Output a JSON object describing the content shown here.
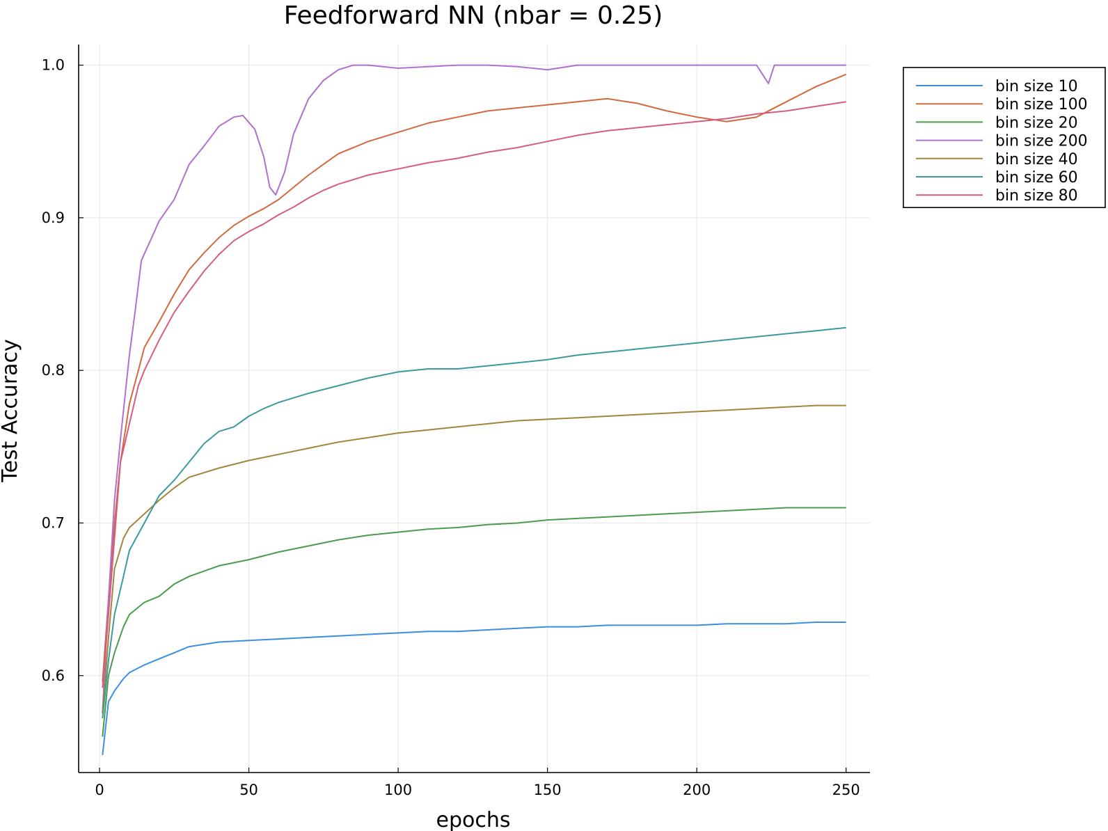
{
  "chart_data": {
    "type": "line",
    "title": "Feedforward NN (nbar = 0.25)",
    "xlabel": "epochs",
    "ylabel": "Test Accuracy",
    "xlim": [
      -7,
      258
    ],
    "ylim": [
      0.5365,
      1.0135
    ],
    "xticks": [
      0,
      50,
      100,
      150,
      200,
      250
    ],
    "xtick_labels": [
      "0",
      "50",
      "100",
      "150",
      "200",
      "250"
    ],
    "yticks": [
      0.6,
      0.7,
      0.8,
      0.9,
      1.0
    ],
    "ytick_labels": [
      "0.6",
      "0.7",
      "0.8",
      "0.9",
      "1.0"
    ],
    "grid": true,
    "legend_position": "outside-top-right",
    "series": [
      {
        "name": "bin size 10",
        "color": "#3b8fe3",
        "points": [
          [
            1,
            0.548
          ],
          [
            3,
            0.583
          ],
          [
            5,
            0.59
          ],
          [
            8,
            0.598
          ],
          [
            10,
            0.602
          ],
          [
            15,
            0.607
          ],
          [
            20,
            0.611
          ],
          [
            25,
            0.615
          ],
          [
            30,
            0.619
          ],
          [
            40,
            0.622
          ],
          [
            50,
            0.623
          ],
          [
            60,
            0.624
          ],
          [
            70,
            0.625
          ],
          [
            80,
            0.626
          ],
          [
            90,
            0.627
          ],
          [
            100,
            0.628
          ],
          [
            110,
            0.629
          ],
          [
            120,
            0.629
          ],
          [
            130,
            0.63
          ],
          [
            140,
            0.631
          ],
          [
            150,
            0.632
          ],
          [
            160,
            0.632
          ],
          [
            170,
            0.633
          ],
          [
            180,
            0.633
          ],
          [
            190,
            0.633
          ],
          [
            200,
            0.633
          ],
          [
            210,
            0.634
          ],
          [
            220,
            0.634
          ],
          [
            230,
            0.634
          ],
          [
            240,
            0.635
          ],
          [
            250,
            0.635
          ]
        ]
      },
      {
        "name": "bin size 100",
        "color": "#d2693e",
        "points": [
          [
            1,
            0.596
          ],
          [
            3,
            0.65
          ],
          [
            5,
            0.7
          ],
          [
            7,
            0.74
          ],
          [
            10,
            0.778
          ],
          [
            13,
            0.8
          ],
          [
            15,
            0.815
          ],
          [
            20,
            0.832
          ],
          [
            25,
            0.85
          ],
          [
            30,
            0.866
          ],
          [
            35,
            0.877
          ],
          [
            40,
            0.887
          ],
          [
            45,
            0.895
          ],
          [
            50,
            0.901
          ],
          [
            55,
            0.906
          ],
          [
            60,
            0.912
          ],
          [
            65,
            0.92
          ],
          [
            70,
            0.928
          ],
          [
            75,
            0.935
          ],
          [
            80,
            0.942
          ],
          [
            90,
            0.95
          ],
          [
            100,
            0.956
          ],
          [
            110,
            0.962
          ],
          [
            120,
            0.966
          ],
          [
            130,
            0.97
          ],
          [
            140,
            0.972
          ],
          [
            150,
            0.974
          ],
          [
            160,
            0.976
          ],
          [
            170,
            0.978
          ],
          [
            180,
            0.975
          ],
          [
            190,
            0.97
          ],
          [
            200,
            0.966
          ],
          [
            210,
            0.963
          ],
          [
            220,
            0.966
          ],
          [
            230,
            0.976
          ],
          [
            240,
            0.986
          ],
          [
            250,
            0.994
          ]
        ]
      },
      {
        "name": "bin size 20",
        "color": "#4c9a4c",
        "points": [
          [
            1,
            0.56
          ],
          [
            3,
            0.6
          ],
          [
            5,
            0.615
          ],
          [
            8,
            0.632
          ],
          [
            10,
            0.64
          ],
          [
            15,
            0.648
          ],
          [
            20,
            0.652
          ],
          [
            25,
            0.66
          ],
          [
            30,
            0.665
          ],
          [
            40,
            0.672
          ],
          [
            50,
            0.676
          ],
          [
            60,
            0.681
          ],
          [
            70,
            0.685
          ],
          [
            80,
            0.689
          ],
          [
            90,
            0.692
          ],
          [
            100,
            0.694
          ],
          [
            110,
            0.696
          ],
          [
            120,
            0.697
          ],
          [
            130,
            0.699
          ],
          [
            140,
            0.7
          ],
          [
            150,
            0.702
          ],
          [
            160,
            0.703
          ],
          [
            170,
            0.704
          ],
          [
            180,
            0.705
          ],
          [
            190,
            0.706
          ],
          [
            200,
            0.707
          ],
          [
            210,
            0.708
          ],
          [
            220,
            0.709
          ],
          [
            230,
            0.71
          ],
          [
            240,
            0.71
          ],
          [
            250,
            0.71
          ]
        ]
      },
      {
        "name": "bin size 200",
        "color": "#b06fd1",
        "points": [
          [
            1,
            0.576
          ],
          [
            3,
            0.65
          ],
          [
            5,
            0.715
          ],
          [
            7,
            0.755
          ],
          [
            10,
            0.81
          ],
          [
            12,
            0.84
          ],
          [
            14,
            0.872
          ],
          [
            17,
            0.885
          ],
          [
            20,
            0.898
          ],
          [
            25,
            0.912
          ],
          [
            30,
            0.935
          ],
          [
            35,
            0.947
          ],
          [
            40,
            0.96
          ],
          [
            45,
            0.966
          ],
          [
            48,
            0.967
          ],
          [
            52,
            0.958
          ],
          [
            55,
            0.94
          ],
          [
            57,
            0.92
          ],
          [
            59,
            0.915
          ],
          [
            62,
            0.93
          ],
          [
            65,
            0.955
          ],
          [
            70,
            0.978
          ],
          [
            75,
            0.99
          ],
          [
            80,
            0.997
          ],
          [
            85,
            1.0
          ],
          [
            90,
            1.0
          ],
          [
            100,
            0.998
          ],
          [
            110,
            0.999
          ],
          [
            120,
            1.0
          ],
          [
            130,
            1.0
          ],
          [
            140,
            0.999
          ],
          [
            150,
            0.997
          ],
          [
            160,
            1.0
          ],
          [
            170,
            1.0
          ],
          [
            180,
            1.0
          ],
          [
            190,
            1.0
          ],
          [
            200,
            1.0
          ],
          [
            210,
            1.0
          ],
          [
            220,
            1.0
          ],
          [
            224,
            0.988
          ],
          [
            226,
            1.0
          ],
          [
            240,
            1.0
          ],
          [
            250,
            1.0
          ]
        ]
      },
      {
        "name": "bin size 40",
        "color": "#a0853a",
        "points": [
          [
            1,
            0.575
          ],
          [
            3,
            0.625
          ],
          [
            5,
            0.67
          ],
          [
            8,
            0.69
          ],
          [
            10,
            0.697
          ],
          [
            15,
            0.706
          ],
          [
            20,
            0.715
          ],
          [
            25,
            0.723
          ],
          [
            30,
            0.73
          ],
          [
            40,
            0.736
          ],
          [
            50,
            0.741
          ],
          [
            60,
            0.745
          ],
          [
            70,
            0.749
          ],
          [
            80,
            0.753
          ],
          [
            90,
            0.756
          ],
          [
            100,
            0.759
          ],
          [
            110,
            0.761
          ],
          [
            120,
            0.763
          ],
          [
            130,
            0.765
          ],
          [
            140,
            0.767
          ],
          [
            150,
            0.768
          ],
          [
            160,
            0.769
          ],
          [
            170,
            0.77
          ],
          [
            180,
            0.771
          ],
          [
            190,
            0.772
          ],
          [
            200,
            0.773
          ],
          [
            210,
            0.774
          ],
          [
            220,
            0.775
          ],
          [
            230,
            0.776
          ],
          [
            240,
            0.777
          ],
          [
            250,
            0.777
          ]
        ]
      },
      {
        "name": "bin size 60",
        "color": "#3a9a9c",
        "points": [
          [
            1,
            0.572
          ],
          [
            3,
            0.61
          ],
          [
            5,
            0.64
          ],
          [
            8,
            0.665
          ],
          [
            10,
            0.682
          ],
          [
            15,
            0.7
          ],
          [
            20,
            0.718
          ],
          [
            25,
            0.728
          ],
          [
            30,
            0.74
          ],
          [
            35,
            0.752
          ],
          [
            40,
            0.76
          ],
          [
            45,
            0.763
          ],
          [
            50,
            0.77
          ],
          [
            55,
            0.775
          ],
          [
            60,
            0.779
          ],
          [
            70,
            0.785
          ],
          [
            80,
            0.79
          ],
          [
            90,
            0.795
          ],
          [
            100,
            0.799
          ],
          [
            110,
            0.801
          ],
          [
            120,
            0.801
          ],
          [
            130,
            0.803
          ],
          [
            140,
            0.805
          ],
          [
            150,
            0.807
          ],
          [
            160,
            0.81
          ],
          [
            170,
            0.812
          ],
          [
            180,
            0.814
          ],
          [
            190,
            0.816
          ],
          [
            200,
            0.818
          ],
          [
            210,
            0.82
          ],
          [
            220,
            0.822
          ],
          [
            230,
            0.824
          ],
          [
            240,
            0.826
          ],
          [
            250,
            0.828
          ]
        ]
      },
      {
        "name": "bin size 80",
        "color": "#d45d7f",
        "points": [
          [
            1,
            0.592
          ],
          [
            3,
            0.64
          ],
          [
            5,
            0.69
          ],
          [
            7,
            0.74
          ],
          [
            10,
            0.765
          ],
          [
            13,
            0.79
          ],
          [
            15,
            0.8
          ],
          [
            20,
            0.82
          ],
          [
            25,
            0.838
          ],
          [
            30,
            0.852
          ],
          [
            35,
            0.865
          ],
          [
            40,
            0.876
          ],
          [
            45,
            0.885
          ],
          [
            50,
            0.891
          ],
          [
            55,
            0.896
          ],
          [
            60,
            0.902
          ],
          [
            65,
            0.907
          ],
          [
            70,
            0.913
          ],
          [
            75,
            0.918
          ],
          [
            80,
            0.922
          ],
          [
            90,
            0.928
          ],
          [
            100,
            0.932
          ],
          [
            110,
            0.936
          ],
          [
            120,
            0.939
          ],
          [
            130,
            0.943
          ],
          [
            140,
            0.946
          ],
          [
            150,
            0.95
          ],
          [
            160,
            0.954
          ],
          [
            170,
            0.957
          ],
          [
            180,
            0.959
          ],
          [
            190,
            0.961
          ],
          [
            200,
            0.963
          ],
          [
            210,
            0.965
          ],
          [
            220,
            0.968
          ],
          [
            230,
            0.97
          ],
          [
            240,
            0.973
          ],
          [
            250,
            0.976
          ]
        ]
      }
    ]
  }
}
